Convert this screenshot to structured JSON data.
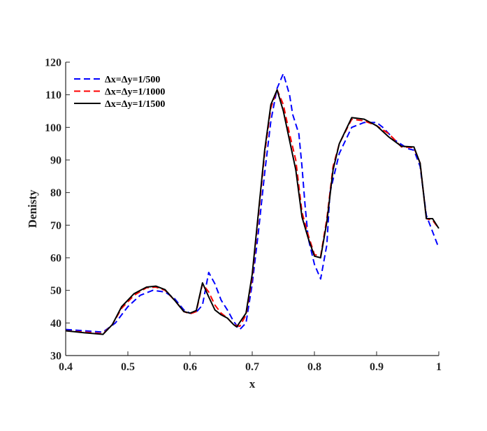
{
  "chart_data": {
    "type": "line",
    "title": "",
    "xlabel": "x",
    "ylabel": "Denisty",
    "xlim": [
      0.4,
      1.0
    ],
    "ylim": [
      30,
      120
    ],
    "xticks": [
      0.4,
      0.5,
      0.6,
      0.7,
      0.8,
      0.9,
      1.0
    ],
    "xtick_labels": [
      "0.4",
      "0.5",
      "0.6",
      "0.7",
      "0.8",
      "0.9",
      "1"
    ],
    "yticks": [
      30,
      40,
      50,
      60,
      70,
      80,
      90,
      100,
      110,
      120
    ],
    "ytick_labels": [
      "30",
      "40",
      "50",
      "60",
      "70",
      "80",
      "90",
      "100",
      "110",
      "120"
    ],
    "grid": false,
    "legend_position": "top-left",
    "series": [
      {
        "name": "Δx=Δy=1/500",
        "color": "#0000ff",
        "style": "dashed",
        "points": [
          [
            0.4,
            38.0
          ],
          [
            0.43,
            37.6
          ],
          [
            0.46,
            37.2
          ],
          [
            0.48,
            40.0
          ],
          [
            0.5,
            45.0
          ],
          [
            0.52,
            48.5
          ],
          [
            0.54,
            50.0
          ],
          [
            0.56,
            49.5
          ],
          [
            0.575,
            47.5
          ],
          [
            0.59,
            44.0
          ],
          [
            0.6,
            43.0
          ],
          [
            0.61,
            43.3
          ],
          [
            0.62,
            45.5
          ],
          [
            0.63,
            55.5
          ],
          [
            0.64,
            52.0
          ],
          [
            0.65,
            47.0
          ],
          [
            0.66,
            44.0
          ],
          [
            0.67,
            40.5
          ],
          [
            0.68,
            38.0
          ],
          [
            0.69,
            40.0
          ],
          [
            0.7,
            52.0
          ],
          [
            0.71,
            68.0
          ],
          [
            0.72,
            86.0
          ],
          [
            0.73,
            102.0
          ],
          [
            0.74,
            112.0
          ],
          [
            0.75,
            116.5
          ],
          [
            0.76,
            110.0
          ],
          [
            0.765,
            104.0
          ],
          [
            0.775,
            98.0
          ],
          [
            0.78,
            88.0
          ],
          [
            0.785,
            76.0
          ],
          [
            0.79,
            66.0
          ],
          [
            0.8,
            58.0
          ],
          [
            0.81,
            53.5
          ],
          [
            0.82,
            64.0
          ],
          [
            0.825,
            80.0
          ],
          [
            0.84,
            92.0
          ],
          [
            0.86,
            100.0
          ],
          [
            0.88,
            101.5
          ],
          [
            0.9,
            101.5
          ],
          [
            0.91,
            100.0
          ],
          [
            0.93,
            96.0
          ],
          [
            0.95,
            93.5
          ],
          [
            0.96,
            93.0
          ],
          [
            0.97,
            88.0
          ],
          [
            0.98,
            73.0
          ],
          [
            0.99,
            68.0
          ],
          [
            1.0,
            63.0
          ]
        ]
      },
      {
        "name": "Δx=Δy=1/1000",
        "color": "#ff0000",
        "style": "dashed",
        "points": [
          [
            0.4,
            37.6
          ],
          [
            0.43,
            37.2
          ],
          [
            0.46,
            36.7
          ],
          [
            0.475,
            39.5
          ],
          [
            0.49,
            44.5
          ],
          [
            0.51,
            48.5
          ],
          [
            0.53,
            50.8
          ],
          [
            0.545,
            51.0
          ],
          [
            0.56,
            50.0
          ],
          [
            0.575,
            47.0
          ],
          [
            0.59,
            43.5
          ],
          [
            0.6,
            42.8
          ],
          [
            0.61,
            43.5
          ],
          [
            0.62,
            52.0
          ],
          [
            0.63,
            49.5
          ],
          [
            0.64,
            45.5
          ],
          [
            0.65,
            43.0
          ],
          [
            0.66,
            41.5
          ],
          [
            0.67,
            39.5
          ],
          [
            0.68,
            39.0
          ],
          [
            0.69,
            42.5
          ],
          [
            0.7,
            54.0
          ],
          [
            0.71,
            73.0
          ],
          [
            0.72,
            92.0
          ],
          [
            0.73,
            106.0
          ],
          [
            0.74,
            111.5
          ],
          [
            0.75,
            107.0
          ],
          [
            0.76,
            98.0
          ],
          [
            0.77,
            90.0
          ],
          [
            0.78,
            74.0
          ],
          [
            0.79,
            67.0
          ],
          [
            0.8,
            61.0
          ],
          [
            0.81,
            60.5
          ],
          [
            0.82,
            72.0
          ],
          [
            0.83,
            88.0
          ],
          [
            0.84,
            95.0
          ],
          [
            0.86,
            102.5
          ],
          [
            0.88,
            102.0
          ],
          [
            0.9,
            100.5
          ],
          [
            0.92,
            98.0
          ],
          [
            0.94,
            94.0
          ],
          [
            0.96,
            93.8
          ],
          [
            0.97,
            89.0
          ],
          [
            0.98,
            72.0
          ],
          [
            0.99,
            71.5
          ],
          [
            1.0,
            69.0
          ]
        ]
      },
      {
        "name": "Δx=Δy=1/1500",
        "color": "#000000",
        "style": "solid",
        "points": [
          [
            0.4,
            37.6
          ],
          [
            0.43,
            37.0
          ],
          [
            0.46,
            36.5
          ],
          [
            0.475,
            39.5
          ],
          [
            0.49,
            45.0
          ],
          [
            0.51,
            49.0
          ],
          [
            0.53,
            51.0
          ],
          [
            0.545,
            51.3
          ],
          [
            0.56,
            50.2
          ],
          [
            0.575,
            47.0
          ],
          [
            0.59,
            43.5
          ],
          [
            0.6,
            43.0
          ],
          [
            0.61,
            43.8
          ],
          [
            0.62,
            52.3
          ],
          [
            0.63,
            48.0
          ],
          [
            0.64,
            44.0
          ],
          [
            0.65,
            42.5
          ],
          [
            0.66,
            41.5
          ],
          [
            0.67,
            39.5
          ],
          [
            0.675,
            38.8
          ],
          [
            0.69,
            43.0
          ],
          [
            0.7,
            55.0
          ],
          [
            0.71,
            74.0
          ],
          [
            0.72,
            93.0
          ],
          [
            0.73,
            107.0
          ],
          [
            0.74,
            111.5
          ],
          [
            0.75,
            105.0
          ],
          [
            0.76,
            96.0
          ],
          [
            0.77,
            87.0
          ],
          [
            0.78,
            72.5
          ],
          [
            0.79,
            66.0
          ],
          [
            0.8,
            60.5
          ],
          [
            0.81,
            60.0
          ],
          [
            0.82,
            71.0
          ],
          [
            0.83,
            87.0
          ],
          [
            0.84,
            95.0
          ],
          [
            0.86,
            103.0
          ],
          [
            0.88,
            102.5
          ],
          [
            0.9,
            100.5
          ],
          [
            0.92,
            97.0
          ],
          [
            0.94,
            94.2
          ],
          [
            0.96,
            94.0
          ],
          [
            0.97,
            89.0
          ],
          [
            0.98,
            72.0
          ],
          [
            0.99,
            72.0
          ],
          [
            1.0,
            69.0
          ]
        ]
      }
    ]
  }
}
